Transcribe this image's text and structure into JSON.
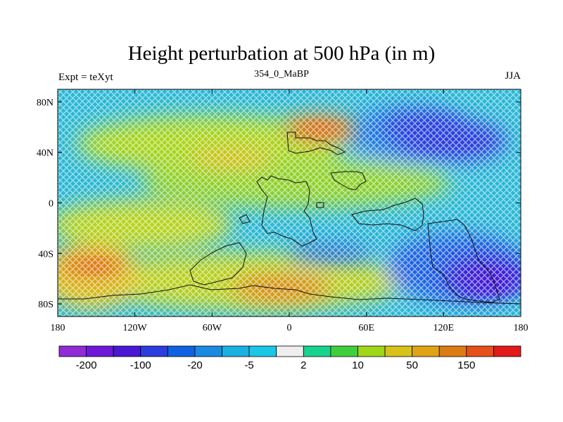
{
  "title": "Height perturbation at 500 hPa (in m)",
  "left_string": "Expt = teXyt",
  "center_string": "354_0_MaBP",
  "right_string": "JJA",
  "y_tick_labels": [
    "80N",
    "40N",
    "0",
    "40S",
    "80S"
  ],
  "y_tick_values": [
    80,
    40,
    0,
    -40,
    -80
  ],
  "x_tick_labels": [
    "180",
    "120W",
    "60W",
    "0",
    "60E",
    "120E",
    "180"
  ],
  "x_tick_values": [
    -180,
    -120,
    -60,
    0,
    60,
    120,
    180
  ],
  "colorbar": {
    "colors": [
      "#8f2cd6",
      "#6d18d8",
      "#4a17d4",
      "#2a3cdd",
      "#1162e2",
      "#1a8ae0",
      "#1ab0e2",
      "#1bc6e6",
      "#eeeeee",
      "#18d38e",
      "#3fcf3c",
      "#9fd61a",
      "#d7c21a",
      "#dfa315",
      "#dc7c14",
      "#e54f1a",
      "#e21a1a"
    ],
    "labels": [
      "-200",
      "-100",
      "-20",
      "-5",
      "2",
      "10",
      "50",
      "150"
    ],
    "label_boundary_index": [
      1,
      3,
      5,
      7,
      9,
      11,
      13,
      15
    ]
  },
  "chart_data": {
    "type": "heatmap",
    "title": "Height perturbation at 500 hPa (in m)",
    "xlim": [
      -180,
      180
    ],
    "ylim": [
      -90,
      90
    ],
    "features": [
      {
        "kind": "high",
        "lon": 30,
        "lat": 55,
        "value": 100
      },
      {
        "kind": "high",
        "lon": -150,
        "lat": -50,
        "value": 100
      },
      {
        "kind": "high",
        "lon": 10,
        "lat": -65,
        "value": 60
      },
      {
        "kind": "low",
        "lon": 120,
        "lat": 55,
        "value": -50
      },
      {
        "kind": "low",
        "lon": 140,
        "lat": -55,
        "value": -100
      },
      {
        "kind": "low",
        "lon": 60,
        "lat": -40,
        "value": -30
      }
    ]
  }
}
